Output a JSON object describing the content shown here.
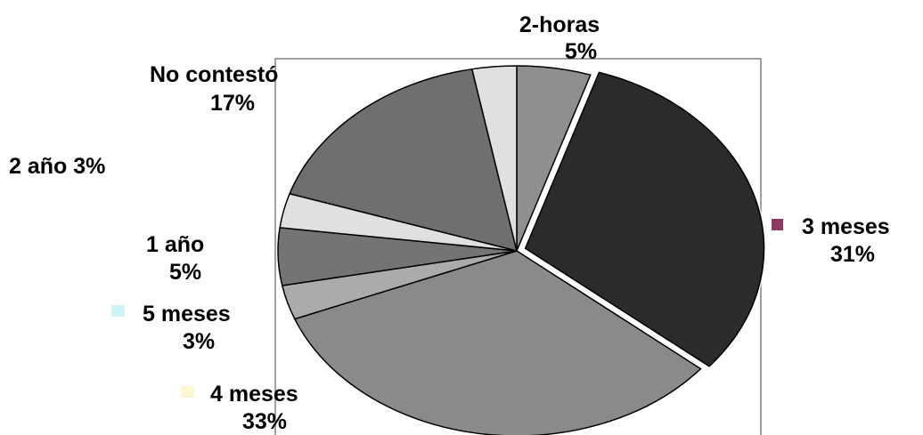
{
  "chart_data": {
    "type": "pie",
    "slices": [
      {
        "label": "2-horas",
        "value": 5,
        "display": "5%",
        "color": "#8f8f8f",
        "legend_marker": null,
        "exploded": false
      },
      {
        "label": "3 meses",
        "value": 31,
        "display": "31%",
        "color": "#2b2b2b",
        "legend_marker": "#8b3a62",
        "exploded": true
      },
      {
        "label": "4 meses",
        "value": 33,
        "display": "33%",
        "color": "#8a8a8a",
        "legend_marker": "#fbf7cf",
        "exploded": false
      },
      {
        "label": "5 meses",
        "value": 3,
        "display": "3%",
        "color": "#ababab",
        "legend_marker": "#cdf5f7",
        "exploded": false
      },
      {
        "label": "1 año",
        "value": 5,
        "display": "5%",
        "color": "#747474",
        "legend_marker": null,
        "exploded": false
      },
      {
        "label": "2 año",
        "value": 3,
        "display": "3%",
        "color": "#e0e0e0",
        "legend_marker": null,
        "exploded": false
      },
      {
        "label": "No contestó",
        "value": 17,
        "display": "17%",
        "color": "#6f6f6f",
        "legend_marker": null,
        "exploded": false
      },
      {
        "label": "",
        "value": 3,
        "display": "",
        "color": "#e0e0e0",
        "legend_marker": null,
        "exploded": false
      }
    ],
    "start_angle_deg": 0,
    "direction": "clockwise",
    "plot_area_border": true,
    "legend": "none",
    "title": ""
  }
}
